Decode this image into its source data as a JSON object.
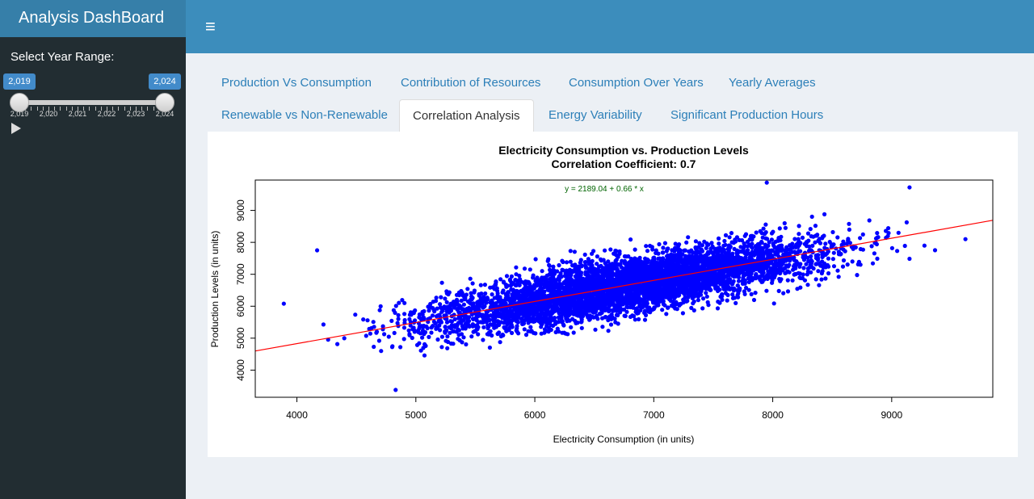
{
  "header": {
    "app_title": "Analysis DashBoard",
    "menu_icon": "hamburger-icon"
  },
  "sidebar": {
    "slider_label": "Select Year Range:",
    "range_from": "2,019",
    "range_to": "2,024",
    "ticks": [
      "2,019",
      "2,020",
      "2,021",
      "2,022",
      "2,023",
      "2,024"
    ],
    "play_icon": "play-icon"
  },
  "tabs": [
    {
      "label": "Production Vs Consumption",
      "active": false
    },
    {
      "label": "Contribution of Resources",
      "active": false
    },
    {
      "label": "Consumption Over Years",
      "active": false
    },
    {
      "label": "Yearly Averages",
      "active": false
    },
    {
      "label": "Renewable vs Non-Renewable",
      "active": false
    },
    {
      "label": "Correlation Analysis",
      "active": true
    },
    {
      "label": "Energy Variability",
      "active": false
    },
    {
      "label": "Significant Production Hours",
      "active": false
    }
  ],
  "colors": {
    "points": "#0000ff",
    "fit_line": "#ff0000",
    "equation": "#006400",
    "header": "#3c8dbc",
    "sidebar": "#222d32"
  },
  "chart_data": {
    "type": "scatter",
    "title": "Electricity Consumption vs. Production Levels",
    "subtitle": "Correlation Coefficient: 0.7",
    "xlabel": "Electricity Consumption (in units)",
    "ylabel": "Production Levels (in units)",
    "xlim": [
      3650,
      9850
    ],
    "ylim": [
      3150,
      9950
    ],
    "xticks": [
      4000,
      5000,
      6000,
      7000,
      8000,
      9000
    ],
    "yticks": [
      4000,
      5000,
      6000,
      7000,
      8000,
      9000
    ],
    "annotation": "y = 2189.04 + 0.66 * x",
    "fit_line": {
      "intercept": 2189.04,
      "slope": 0.66
    },
    "correlation": 0.7,
    "point_cloud": {
      "x_range": [
        3890,
        9620
      ],
      "y_range": [
        3350,
        9900
      ],
      "note_points": [
        {
          "x": 3890,
          "y": 6080
        },
        {
          "x": 4170,
          "y": 7750
        },
        {
          "x": 9620,
          "y": 8100
        },
        {
          "x": 9150,
          "y": 9720
        },
        {
          "x": 7950,
          "y": 9870
        },
        {
          "x": 4830,
          "y": 3380
        }
      ]
    },
    "grid": false,
    "legend": "none"
  }
}
